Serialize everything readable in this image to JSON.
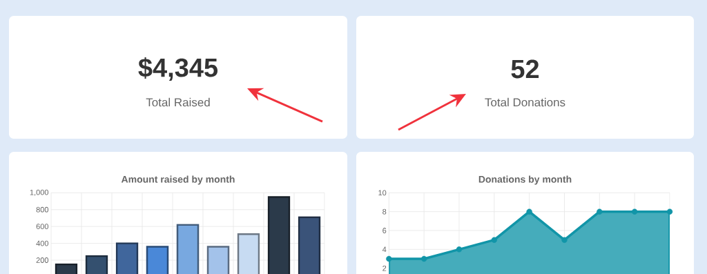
{
  "chart_data": [
    {
      "type": "other",
      "annotations": [
        "$4,345",
        "Total Raised"
      ]
    },
    {
      "type": "other",
      "annotations": [
        "52",
        "Total Donations"
      ]
    },
    {
      "type": "bar",
      "title": "Amount raised by month",
      "categories": [
        null,
        null,
        null,
        null,
        null,
        null,
        null,
        null,
        null
      ],
      "values": [
        150,
        250,
        400,
        360,
        620,
        360,
        510,
        950,
        710
      ],
      "colors": [
        "#2b3a4a",
        "#34506f",
        "#40669c",
        "#4a88d8",
        "#78a8e0",
        "#a3c2ea",
        "#c7dbf2",
        "#2b3a4a",
        "#3a5379"
      ],
      "ylim": [
        0,
        1000
      ],
      "yticks": [
        200,
        400,
        600,
        800,
        {
          "value": 1000,
          "label": "1,000"
        }
      ],
      "grid": true,
      "tick_labels": "y"
    },
    {
      "type": "area",
      "title": "Donations by month",
      "categories": [
        null,
        null,
        null,
        null,
        null,
        null,
        null,
        null,
        null
      ],
      "values": [
        3,
        3,
        4,
        5,
        8,
        5,
        8,
        8,
        8
      ],
      "color": "#1195a8",
      "ylim": [
        0,
        10
      ],
      "yticks": [
        2,
        4,
        6,
        8,
        10
      ],
      "grid": true,
      "marker": "circle",
      "tick_labels": "y"
    }
  ]
}
